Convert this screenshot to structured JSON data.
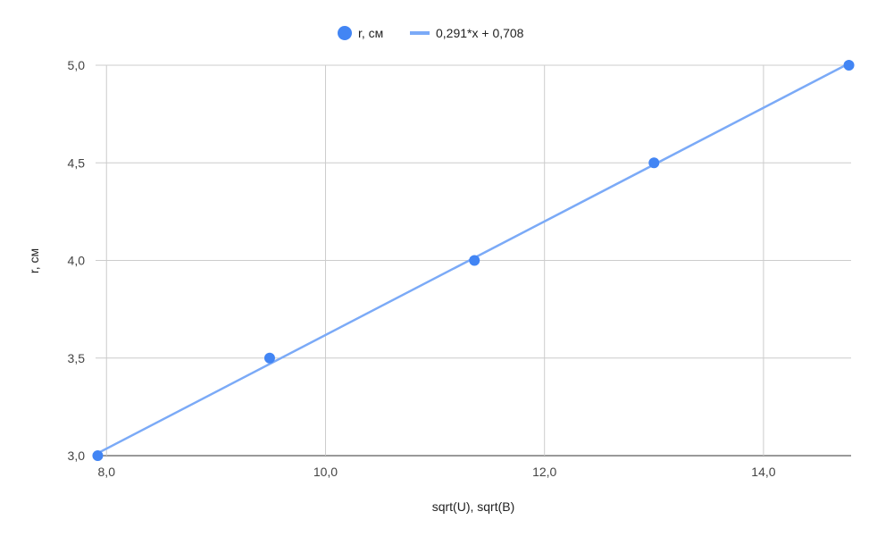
{
  "chart_data": {
    "type": "scatter",
    "title": "",
    "xlabel": "sqrt(U), sqrt(B)",
    "ylabel": "r, см",
    "xlim": [
      7.9,
      14.8
    ],
    "ylim": [
      3.0,
      5.0
    ],
    "x_ticks": [
      {
        "value": 8,
        "label": "8,0"
      },
      {
        "value": 10,
        "label": "10,0"
      },
      {
        "value": 12,
        "label": "12,0"
      },
      {
        "value": 14,
        "label": "14,0"
      }
    ],
    "y_ticks": [
      {
        "value": 3.0,
        "label": "3,0"
      },
      {
        "value": 3.5,
        "label": "3,5"
      },
      {
        "value": 4.0,
        "label": "4,0"
      },
      {
        "value": 4.5,
        "label": "4,5"
      },
      {
        "value": 5.0,
        "label": "5,0"
      }
    ],
    "grid": true,
    "legend_position": "top",
    "series": [
      {
        "name": "r, см",
        "kind": "points",
        "color": "#4285f4",
        "points": [
          {
            "x": 7.92,
            "y": 3.0
          },
          {
            "x": 9.49,
            "y": 3.5
          },
          {
            "x": 11.36,
            "y": 4.0
          },
          {
            "x": 13.0,
            "y": 4.5
          },
          {
            "x": 14.78,
            "y": 5.0
          }
        ]
      },
      {
        "name": "0,291*x + 0,708",
        "kind": "trendline",
        "color": "#7baaf7",
        "slope": 0.291,
        "intercept": 0.708
      }
    ]
  }
}
